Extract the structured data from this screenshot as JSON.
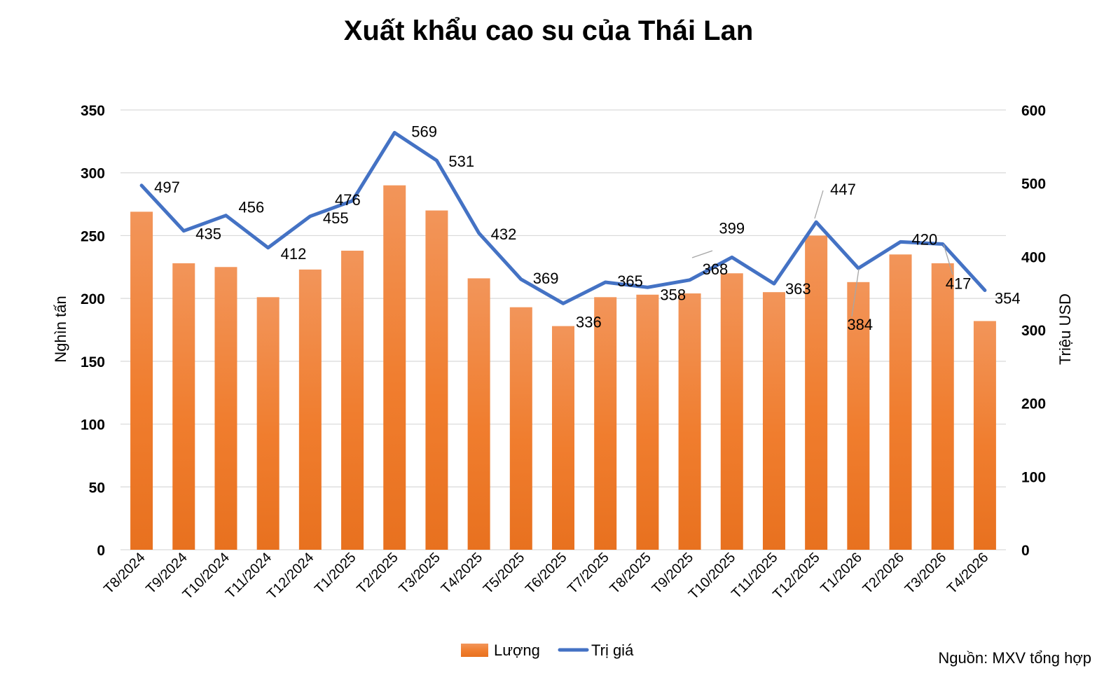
{
  "chart_data": {
    "type": "bar+line",
    "title": "Xuất khẩu cao su của Thái Lan",
    "categories": [
      "T8/2024",
      "T9/2024",
      "T10/2024",
      "T11/2024",
      "T12/2024",
      "T1/2025",
      "T2/2025",
      "T3/2025",
      "T4/2025",
      "T5/2025",
      "T6/2025",
      "T7/2025",
      "T8/2025",
      "T9/2025",
      "T10/2025",
      "T11/2025",
      "T12/2025",
      "T1/2026",
      "T2/2026",
      "T3/2026",
      "T4/2026"
    ],
    "series": [
      {
        "name": "Lượng",
        "type": "bar",
        "axis": "left",
        "color": "#ED7D31",
        "values": [
          269,
          228,
          225,
          201,
          223,
          238,
          290,
          270,
          216,
          193,
          178,
          201,
          203,
          204,
          220,
          205,
          250,
          213,
          235,
          228,
          182
        ]
      },
      {
        "name": "Trị giá",
        "type": "line",
        "axis": "right",
        "color": "#4472C4",
        "values": [
          497,
          435,
          456,
          412,
          455,
          476,
          569,
          531,
          432,
          369,
          336,
          365,
          358,
          368,
          399,
          363,
          447,
          384,
          420,
          417,
          354
        ],
        "data_labels": [
          "497",
          "435",
          "456",
          "412",
          "455",
          "476",
          "569",
          "531",
          "432",
          "369",
          "336",
          "365",
          "358",
          "368",
          "399",
          "363",
          "447",
          "384",
          "420",
          "417",
          "354"
        ]
      }
    ],
    "ylabel": "Nghìn tấn",
    "y2label": "Triệu USD",
    "ylim": [
      0,
      350
    ],
    "y2lim": [
      0,
      600
    ],
    "yticks": [
      0,
      50,
      100,
      150,
      200,
      250,
      300,
      350
    ],
    "y2ticks": [
      0,
      100,
      200,
      300,
      400,
      500,
      600
    ],
    "grid": true,
    "legend_position": "bottom-center"
  },
  "source_note": "Nguồn: MXV tổng hợp"
}
